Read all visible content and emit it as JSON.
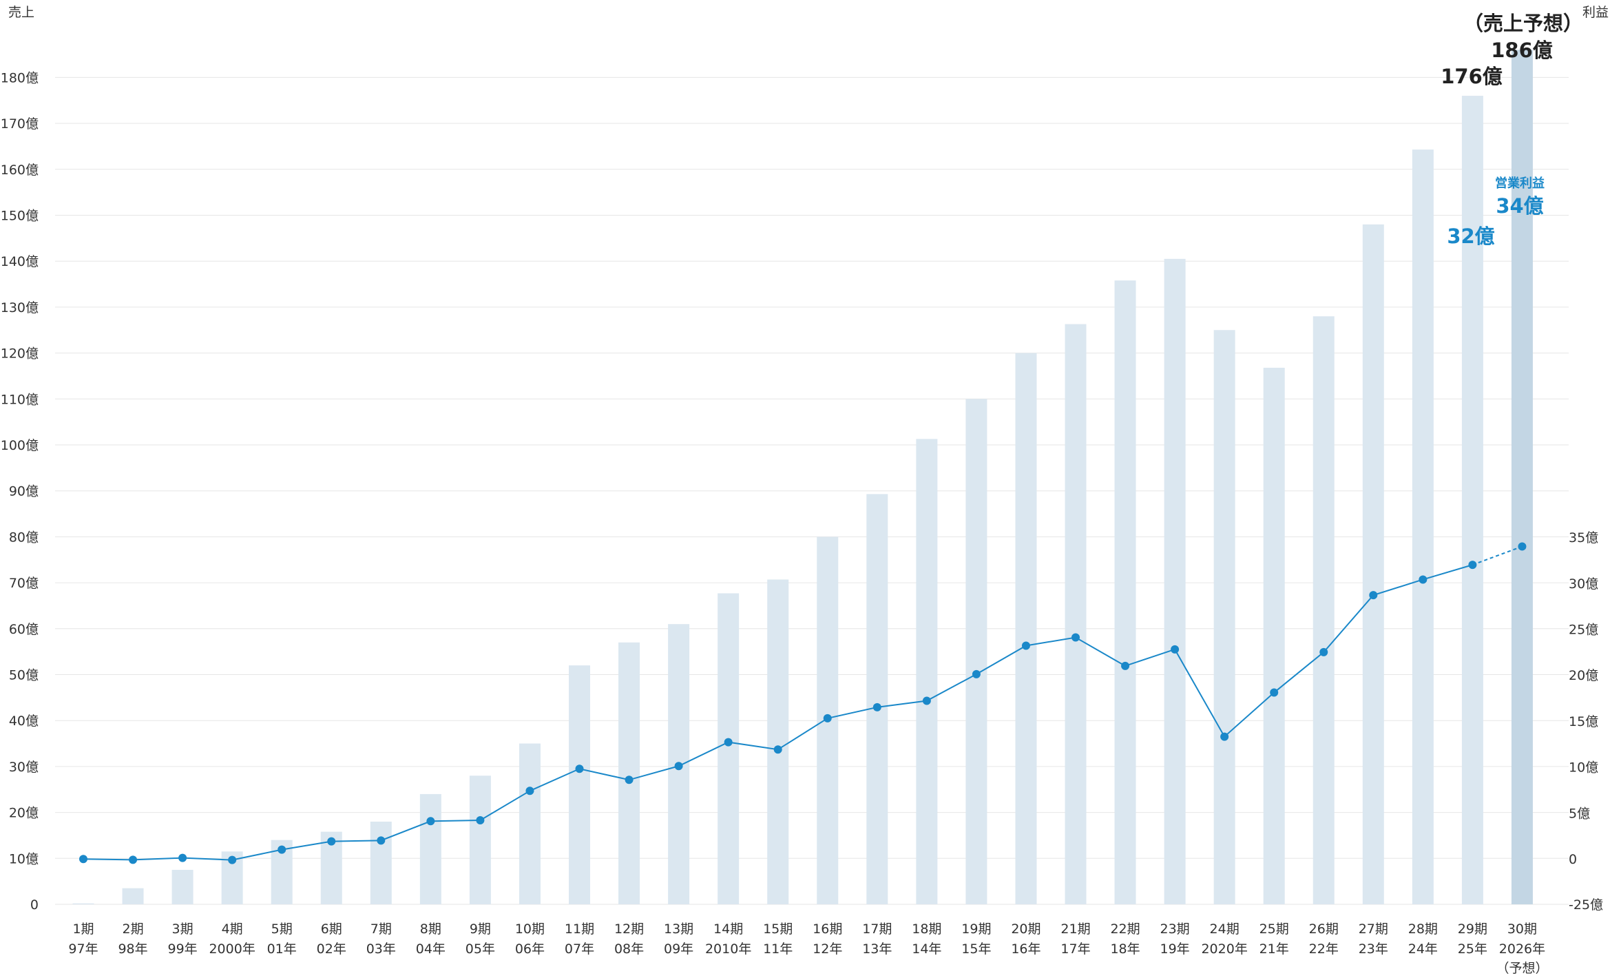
{
  "chart_data": {
    "type": "bar",
    "left_axis_label": "売上",
    "right_axis_label": "利益",
    "left_ticks": [
      "0",
      "10億",
      "20億",
      "30億",
      "40億",
      "50億",
      "60億",
      "70億",
      "80億",
      "90億",
      "100億",
      "110億",
      "120億",
      "130億",
      "140億",
      "150億",
      "160億",
      "170億",
      "180億"
    ],
    "left_tick_values": [
      0,
      10,
      20,
      30,
      40,
      50,
      60,
      70,
      80,
      90,
      100,
      110,
      120,
      130,
      140,
      150,
      160,
      170,
      180
    ],
    "right_ticks": [
      "-25億",
      "0",
      "5億",
      "10億",
      "15億",
      "20億",
      "25億",
      "30億",
      "35億"
    ],
    "right_tick_values": [
      -25,
      0,
      5,
      10,
      15,
      20,
      25,
      30,
      35
    ],
    "ylim_left": [
      0,
      180
    ],
    "ylim_right": [
      -25,
      35
    ],
    "categories": [
      {
        "period": "1期",
        "year": "97年"
      },
      {
        "period": "2期",
        "year": "98年"
      },
      {
        "period": "3期",
        "year": "99年"
      },
      {
        "period": "4期",
        "year": "2000年"
      },
      {
        "period": "5期",
        "year": "01年"
      },
      {
        "period": "6期",
        "year": "02年"
      },
      {
        "period": "7期",
        "year": "03年"
      },
      {
        "period": "8期",
        "year": "04年"
      },
      {
        "period": "9期",
        "year": "05年"
      },
      {
        "period": "10期",
        "year": "06年"
      },
      {
        "period": "11期",
        "year": "07年"
      },
      {
        "period": "12期",
        "year": "08年"
      },
      {
        "period": "13期",
        "year": "09年"
      },
      {
        "period": "14期",
        "year": "2010年"
      },
      {
        "period": "15期",
        "year": "11年"
      },
      {
        "period": "16期",
        "year": "12年"
      },
      {
        "period": "17期",
        "year": "13年"
      },
      {
        "period": "18期",
        "year": "14年"
      },
      {
        "period": "19期",
        "year": "15年"
      },
      {
        "period": "20期",
        "year": "16年"
      },
      {
        "period": "21期",
        "year": "17年"
      },
      {
        "period": "22期",
        "year": "18年"
      },
      {
        "period": "23期",
        "year": "19年"
      },
      {
        "period": "24期",
        "year": "2020年"
      },
      {
        "period": "25期",
        "year": "21年"
      },
      {
        "period": "26期",
        "year": "22年"
      },
      {
        "period": "27期",
        "year": "23年"
      },
      {
        "period": "28期",
        "year": "24年"
      },
      {
        "period": "29期",
        "year": "25年"
      },
      {
        "period": "30期",
        "year": "2026年",
        "note": "（予想）"
      }
    ],
    "series": [
      {
        "name": "売上",
        "axis": "left",
        "kind": "bar",
        "values": [
          0.2,
          3.5,
          7.5,
          11.5,
          14,
          15.8,
          18,
          24,
          28,
          35,
          52,
          57,
          61,
          67.7,
          70.7,
          80,
          89.3,
          101.3,
          110,
          120,
          126.3,
          135.8,
          140.5,
          125,
          116.8,
          128,
          148,
          164.3,
          176,
          186
        ],
        "forecast_index": 29
      },
      {
        "name": "営業利益",
        "axis": "right",
        "kind": "line",
        "values": [
          -0.1,
          -0.5,
          0.1,
          -0.6,
          1,
          1.9,
          2,
          4.1,
          4.2,
          7.4,
          9.8,
          8.6,
          10.1,
          12.7,
          11.9,
          15.3,
          16.5,
          17.2,
          20.1,
          23.2,
          24.1,
          21,
          22.8,
          13.3,
          18.1,
          22.5,
          28.7,
          30.4,
          32,
          34
        ],
        "forecast_index": 29
      }
    ],
    "annotations": {
      "sales_forecast_label": "（売上予想）",
      "sales_forecast_value": "186億",
      "sales_last_value": "176億",
      "profit_name": "営業利益",
      "profit_forecast_value": "34億",
      "profit_last_value": "32億"
    },
    "grid": true,
    "colors": {
      "bar": "#dbe7f0",
      "bar_forecast": "#c3d6e4",
      "line": "#1a88c9",
      "accent_text": "#1a88c9",
      "grid": "#e6e6e6",
      "text": "#333333"
    }
  }
}
